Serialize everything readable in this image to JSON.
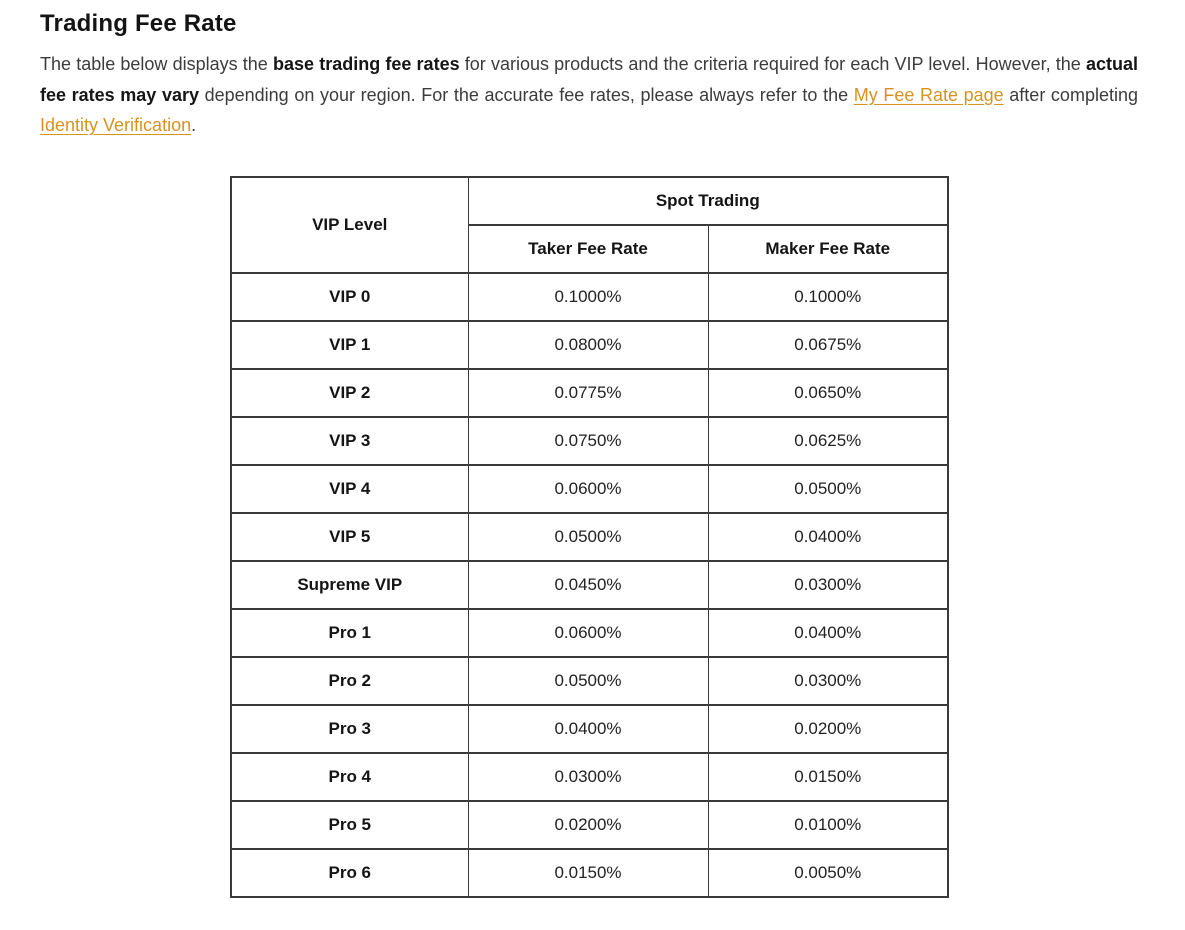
{
  "page": {
    "title": "Trading Fee Rate",
    "intro": {
      "seg1": "The table below displays the ",
      "bold1": "base trading fee rates",
      "seg2": " for various products and the criteria required for each VIP level. However, the ",
      "bold2": "actual fee rates may vary",
      "seg3": " depending on your region. For the accurate fee rates, please always refer to the ",
      "link1": "My Fee Rate page",
      "seg4": " after completing ",
      "link2": "Identity Verification",
      "seg5": "."
    }
  },
  "table": {
    "header": {
      "vip_level": "VIP Level",
      "group": "Spot Trading",
      "taker": "Taker Fee Rate",
      "maker": "Maker Fee Rate"
    },
    "rows": [
      {
        "level": "VIP 0",
        "taker": "0.1000%",
        "maker": "0.1000%"
      },
      {
        "level": "VIP 1",
        "taker": "0.0800%",
        "maker": "0.0675%"
      },
      {
        "level": "VIP 2",
        "taker": "0.0775%",
        "maker": "0.0650%"
      },
      {
        "level": "VIP 3",
        "taker": "0.0750%",
        "maker": "0.0625%"
      },
      {
        "level": "VIP 4",
        "taker": "0.0600%",
        "maker": "0.0500%"
      },
      {
        "level": "VIP 5",
        "taker": "0.0500%",
        "maker": "0.0400%"
      },
      {
        "level": "Supreme VIP",
        "taker": "0.0450%",
        "maker": "0.0300%"
      },
      {
        "level": "Pro 1",
        "taker": "0.0600%",
        "maker": "0.0400%"
      },
      {
        "level": "Pro 2",
        "taker": "0.0500%",
        "maker": "0.0300%"
      },
      {
        "level": "Pro 3",
        "taker": "0.0400%",
        "maker": "0.0200%"
      },
      {
        "level": "Pro 4",
        "taker": "0.0300%",
        "maker": "0.0150%"
      },
      {
        "level": "Pro 5",
        "taker": "0.0200%",
        "maker": "0.0100%"
      },
      {
        "level": "Pro 6",
        "taker": "0.0150%",
        "maker": "0.0050%"
      }
    ]
  },
  "colors": {
    "link": "#d8921f",
    "body_text": "#3c3c3c",
    "heading_text": "#141414",
    "table_border": "#3a3a3a",
    "background": "#ffffff"
  }
}
